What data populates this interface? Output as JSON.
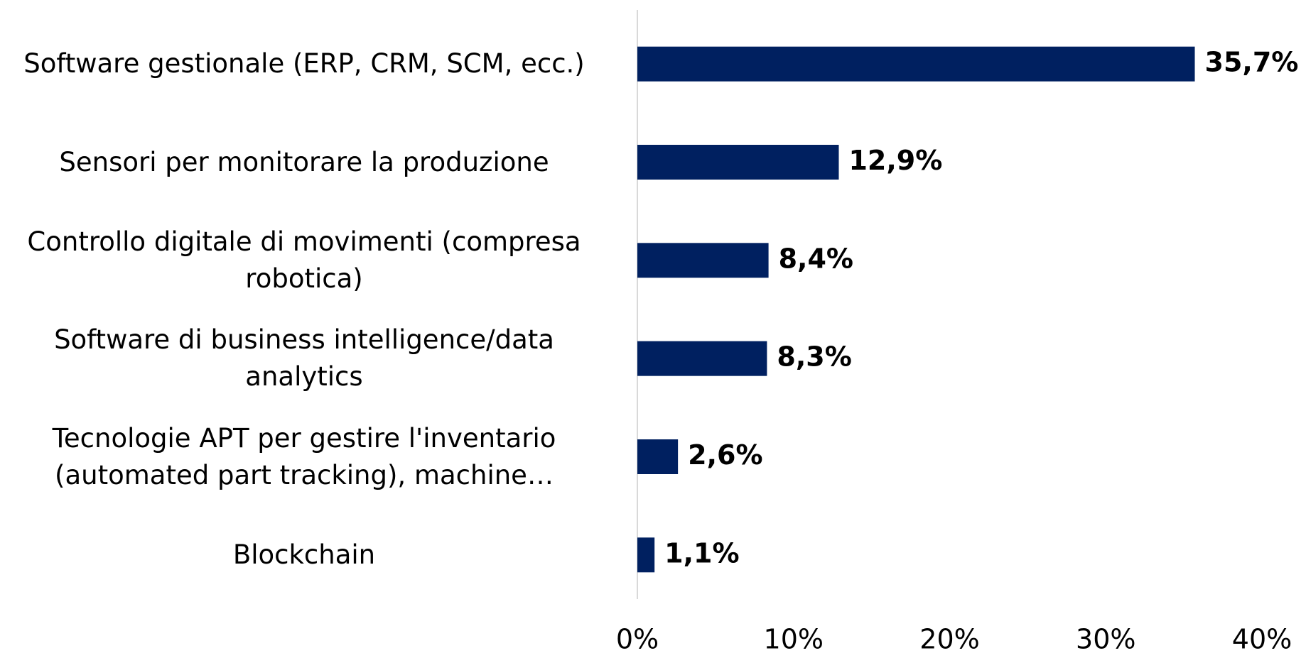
{
  "chart_data": {
    "type": "hbar",
    "categories": [
      "Software gestionale (ERP, CRM, SCM, ecc.)",
      "Sensori per monitorare la produzione",
      "Controllo digitale di movimenti (compresa robotica)",
      "Software di business intelligence/data analytics",
      "Tecnologie APT per gestire l'inventario (automated part tracking), machine…",
      "Blockchain"
    ],
    "values": [
      35.7,
      12.9,
      8.4,
      8.3,
      2.6,
      1.1
    ],
    "value_labels": [
      "35,7%",
      "12,9%",
      "8,4%",
      "8,3%",
      "2,6%",
      "1,1%"
    ],
    "color": "#002060",
    "xlim": [
      0,
      40
    ],
    "xticks": [
      {
        "value": 0,
        "label": "0%"
      },
      {
        "value": 10,
        "label": "10%"
      },
      {
        "value": 20,
        "label": "20%"
      },
      {
        "value": 30,
        "label": "30%"
      },
      {
        "value": 40,
        "label": "40%"
      }
    ],
    "grid": false
  }
}
